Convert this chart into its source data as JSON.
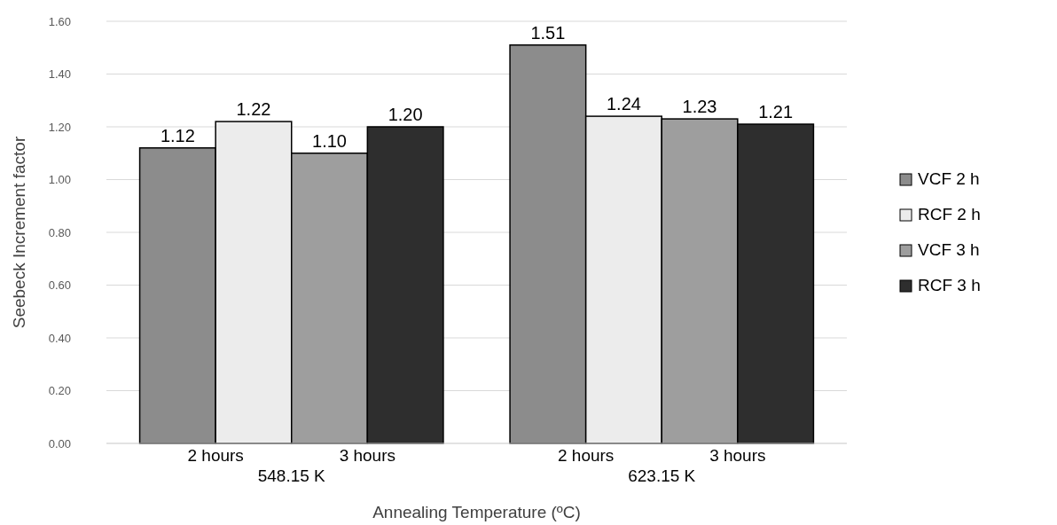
{
  "chart_data": {
    "type": "bar",
    "xlabel": "Annealing Temperature (ºC)",
    "ylabel": "Seebeck Increment factor",
    "categories": [
      "548.15 K",
      "623.15 K"
    ],
    "series": [
      {
        "name": "VCF 2 h",
        "color": "#8c8c8c",
        "values": [
          1.12,
          1.51
        ],
        "value_labels": [
          "1.12",
          "1.51"
        ]
      },
      {
        "name": "RCF 2 h",
        "color": "#ececec",
        "values": [
          1.22,
          1.24
        ],
        "value_labels": [
          "1.22",
          "1.24"
        ]
      },
      {
        "name": "VCF 3 h",
        "color": "#9e9e9e",
        "values": [
          1.1,
          1.23
        ],
        "value_labels": [
          "1.10",
          "1.23"
        ]
      },
      {
        "name": "RCF 3 h",
        "color": "#2e2e2e",
        "values": [
          1.2,
          1.21
        ],
        "value_labels": [
          "1.20",
          "1.21"
        ]
      }
    ],
    "ylim": [
      0,
      1.6
    ],
    "yticks": [
      {
        "value": 0,
        "label": "0.00"
      },
      {
        "value": 0.2,
        "label": "0.20"
      },
      {
        "value": 0.4,
        "label": "0.40"
      },
      {
        "value": 0.6,
        "label": "0.60"
      },
      {
        "value": 0.8,
        "label": "0.80"
      },
      {
        "value": 1,
        "label": "1.00"
      },
      {
        "value": 1.2,
        "label": "1.20"
      },
      {
        "value": 1.4,
        "label": "1.40"
      },
      {
        "value": 1.6,
        "label": "1.60"
      }
    ],
    "grid": "y",
    "legend": "right",
    "annotations": [
      "2 hours",
      "3 hours",
      "2 hours",
      "3 hours"
    ]
  }
}
